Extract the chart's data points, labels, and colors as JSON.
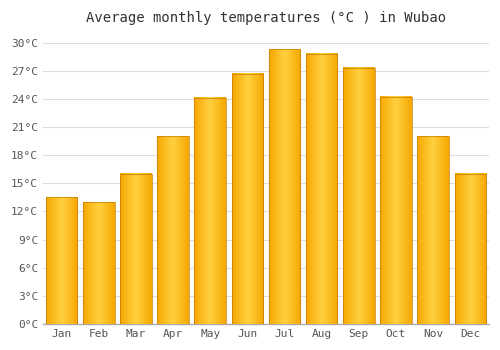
{
  "title": "Average monthly temperatures (°C ) in Wubao",
  "months": [
    "Jan",
    "Feb",
    "Mar",
    "Apr",
    "May",
    "Jun",
    "Jul",
    "Aug",
    "Sep",
    "Oct",
    "Nov",
    "Dec"
  ],
  "values": [
    13.5,
    13.0,
    16.0,
    20.0,
    24.1,
    26.7,
    29.3,
    28.8,
    27.3,
    24.2,
    20.0,
    16.0
  ],
  "bar_color_outer": "#F5A800",
  "bar_color_inner": "#FFD040",
  "bar_edge_color": "#C87800",
  "ylim": [
    0,
    31
  ],
  "yticks": [
    0,
    3,
    6,
    9,
    12,
    15,
    18,
    21,
    24,
    27,
    30
  ],
  "ytick_labels": [
    "0°C",
    "3°C",
    "6°C",
    "9°C",
    "12°C",
    "15°C",
    "18°C",
    "21°C",
    "24°C",
    "27°C",
    "30°C"
  ],
  "background_color": "#ffffff",
  "grid_color": "#dddddd",
  "title_fontsize": 10,
  "tick_fontsize": 8,
  "figsize": [
    5.0,
    3.5
  ],
  "dpi": 100,
  "bar_width": 0.85
}
